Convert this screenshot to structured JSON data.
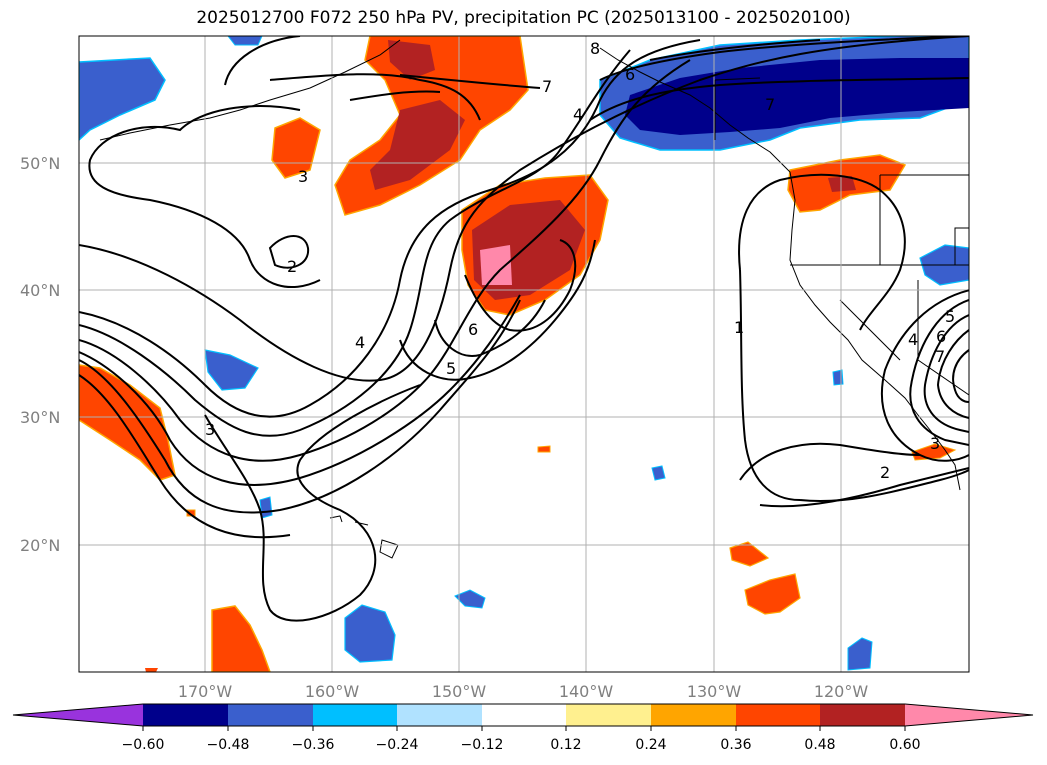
{
  "title": "2025012700 F072 250 hPa PV, precipitation PC (2025013100 - 2025020100)",
  "lat_labels": [
    "50°N",
    "40°N",
    "30°N",
    "20°N"
  ],
  "lon_labels": [
    "170°W",
    "160°W",
    "150°W",
    "140°W",
    "130°W",
    "120°W"
  ],
  "contour_labels": [
    "8",
    "7",
    "6",
    "4",
    "7",
    "3",
    "2",
    "4",
    "6",
    "5",
    "3",
    "1",
    "5",
    "4",
    "6",
    "7",
    "3",
    "2"
  ],
  "colorbar": {
    "ticks": [
      "−0.60",
      "−0.48",
      "−0.36",
      "−0.24",
      "−0.12",
      "0.12",
      "0.24",
      "0.36",
      "0.48",
      "0.60"
    ],
    "colors": [
      "#9933dd",
      "#00008b",
      "#3a5fcd",
      "#00bfff",
      "#b0e2ff",
      "#ffffff",
      "#fff08f",
      "#ffa500",
      "#ff4500",
      "#b22222",
      "#ff88aa"
    ]
  }
}
